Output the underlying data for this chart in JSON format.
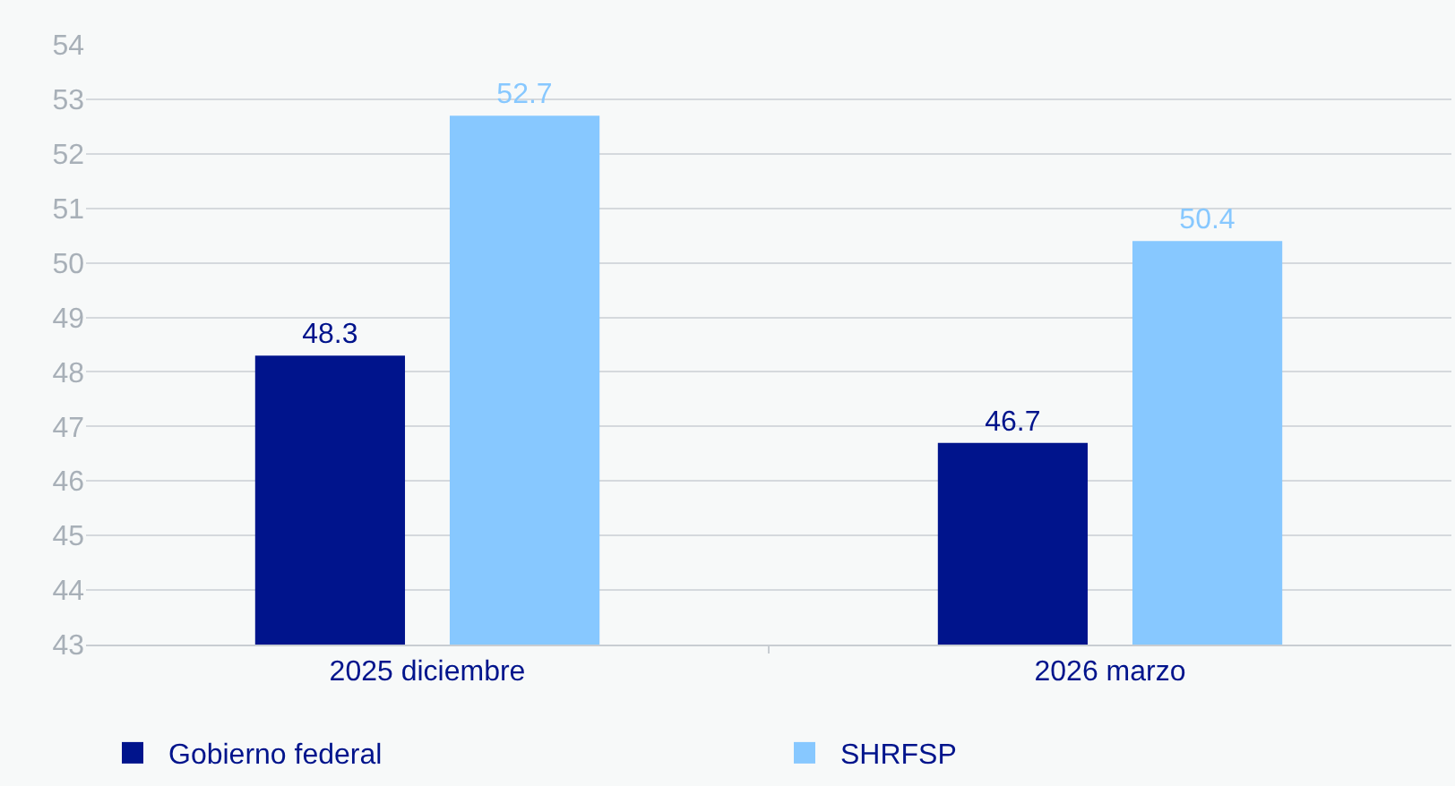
{
  "chart_data": {
    "type": "bar",
    "categories": [
      "2025 diciembre",
      "2026 marzo"
    ],
    "series": [
      {
        "name": "Gobierno federal",
        "color": "#00148c",
        "values": [
          48.3,
          46.7
        ]
      },
      {
        "name": "SHRFSP",
        "color": "#87c8ff",
        "values": [
          52.7,
          50.4
        ]
      }
    ],
    "ylim": [
      43,
      54
    ],
    "yticks": [
      43,
      44,
      45,
      46,
      47,
      48,
      49,
      50,
      51,
      52,
      53,
      54
    ],
    "grid": "y",
    "legend": "bottom",
    "data_labels": true
  }
}
